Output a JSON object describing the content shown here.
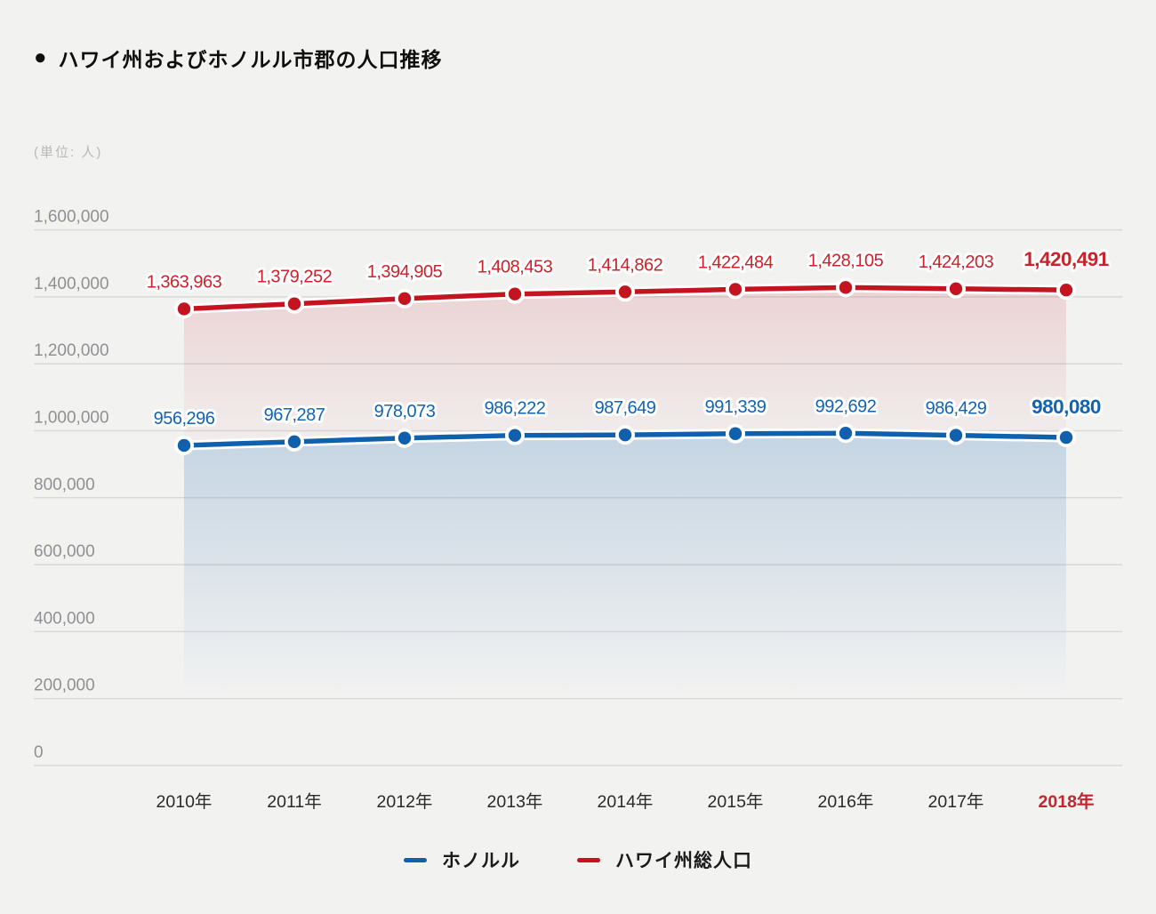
{
  "title": {
    "bullet": "●",
    "text": "ハワイ州およびホノルル市郡の人口推移"
  },
  "unit_label": "(単位: 人)",
  "chart_data": {
    "type": "line",
    "title": "ハワイ州およびホノルル市郡の人口推移",
    "unit": "(単位: 人)",
    "categories": [
      "2010年",
      "2011年",
      "2012年",
      "2013年",
      "2014年",
      "2015年",
      "2016年",
      "2017年",
      "2018年"
    ],
    "highlight_last_category": true,
    "series": [
      {
        "name": "ホノルル",
        "color": "#1160ad",
        "label_color": "#1263b2",
        "values": [
          956296,
          967287,
          978073,
          986222,
          987649,
          991339,
          992692,
          986429,
          980080
        ],
        "labels": [
          "956,296",
          "967,287",
          "978,073",
          "986,222",
          "987,649",
          "991,339",
          "992,692",
          "986,429",
          "980,080"
        ]
      },
      {
        "name": "ハワイ州総人口",
        "color": "#c31420",
        "label_color": "#ca232b",
        "values": [
          1363963,
          1379252,
          1394905,
          1408453,
          1414862,
          1422484,
          1428105,
          1424203,
          1420491
        ],
        "labels": [
          "1,363,963",
          "1,379,252",
          "1,394,905",
          "1,408,453",
          "1,414,862",
          "1,422,484",
          "1,428,105",
          "1,424,203",
          "1,420,491"
        ]
      }
    ],
    "ylim": [
      0,
      1600000
    ],
    "yticks": [
      {
        "value": 0,
        "label": "0"
      },
      {
        "value": 200000,
        "label": "200,000"
      },
      {
        "value": 400000,
        "label": "400,000"
      },
      {
        "value": 600000,
        "label": "600,000"
      },
      {
        "value": 800000,
        "label": "800,000"
      },
      {
        "value": 1000000,
        "label": "1,000,000"
      },
      {
        "value": 1200000,
        "label": "1,200,000"
      },
      {
        "value": 1400000,
        "label": "1,400,000"
      },
      {
        "value": 1600000,
        "label": "1,600,000"
      }
    ],
    "grid": true,
    "legend_position": "bottom",
    "colors": {
      "background": "#f2f2f1",
      "gridline": "#d9d9d9",
      "ytick_text": "#8f9093",
      "xtick_text": "#2a2a2a",
      "xtick_highlight": "#c0262e",
      "casing_white": "#ffffff"
    }
  },
  "legend": {
    "items": [
      {
        "label": "ホノルル",
        "color": "#1160ad"
      },
      {
        "label": "ハワイ州総人口",
        "color": "#c31420"
      }
    ]
  }
}
